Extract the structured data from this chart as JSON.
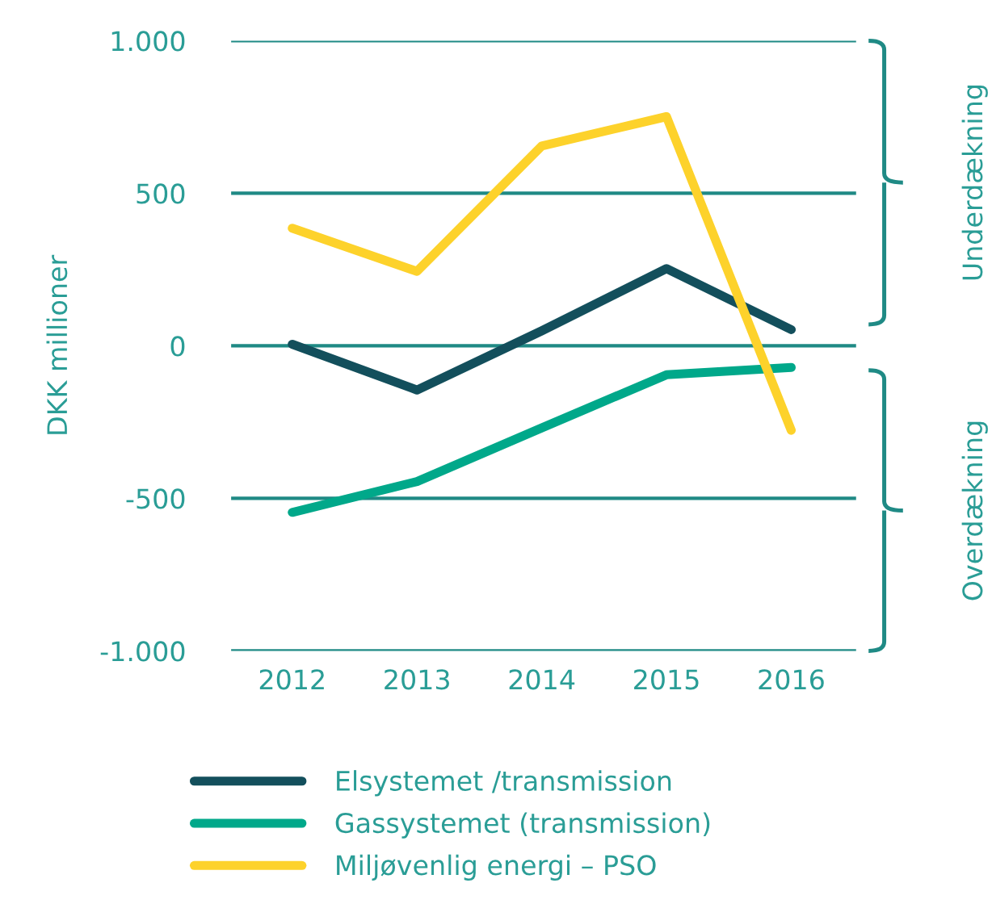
{
  "chart_data": {
    "type": "line",
    "ylabel": "DKK millioner",
    "categories": [
      "2012",
      "2013",
      "2014",
      "2015",
      "2016"
    ],
    "series": [
      {
        "name": "Elsystemet /transmission",
        "color": "#134f5c",
        "values": [
          5,
          -145,
          49,
          253,
          53
        ]
      },
      {
        "name": "Gassystemet (transmission)",
        "color": "#00a88a",
        "values": [
          -546,
          -445,
          -269,
          -95,
          -71
        ]
      },
      {
        "name": "Miljøvenlig energi – PSO",
        "color": "#fdd22b",
        "values": [
          385,
          244,
          655,
          751,
          -277
        ]
      }
    ],
    "ylim": [
      -1000,
      1000
    ],
    "yticks": [
      {
        "value": -1000,
        "label": "-1.000"
      },
      -500,
      0,
      500,
      {
        "value": 1000,
        "label": "1.000"
      }
    ],
    "grid": "y",
    "legend": "bottom",
    "marker": "none",
    "line_style": "solid",
    "annotations": [
      "Underdækning",
      "Overdækning"
    ]
  }
}
